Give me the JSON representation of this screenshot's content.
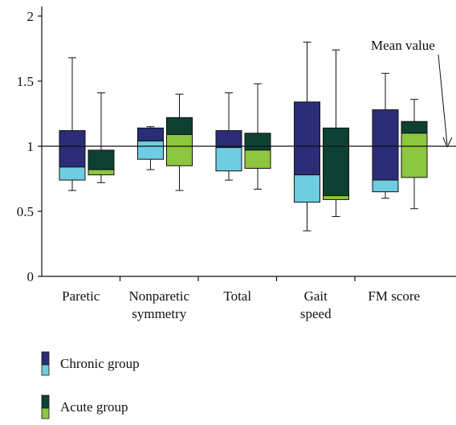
{
  "chart_data": {
    "type": "box",
    "y_ticks": [
      "0",
      "0.5",
      "1",
      "1.5",
      "2"
    ],
    "ylim": [
      0,
      2
    ],
    "reference_line": {
      "value": 1,
      "label": "Mean value"
    },
    "categories": [
      {
        "label_lines": [
          "Paretic"
        ]
      },
      {
        "label_lines": [
          "Nonparetic",
          "symmetry"
        ]
      },
      {
        "label_lines": [
          "Total"
        ]
      },
      {
        "label_lines": [
          "Gait",
          "speed"
        ]
      },
      {
        "label_lines": [
          "FM score"
        ]
      }
    ],
    "series": [
      {
        "name": "Chronic group",
        "colors": {
          "upper": "#2b2d78",
          "lower": "#6ecde0"
        },
        "boxes": [
          {
            "min": 0.66,
            "q1": 0.74,
            "median": 0.84,
            "q3": 1.12,
            "max": 1.68
          },
          {
            "min": 0.82,
            "q1": 0.9,
            "median": 1.04,
            "q3": 1.14,
            "max": 1.15
          },
          {
            "min": 0.74,
            "q1": 0.81,
            "median": 0.99,
            "q3": 1.12,
            "max": 1.41
          },
          {
            "min": 0.35,
            "q1": 0.57,
            "median": 0.78,
            "q3": 1.34,
            "max": 1.8
          },
          {
            "min": 0.6,
            "q1": 0.65,
            "median": 0.74,
            "q3": 1.28,
            "max": 1.56
          }
        ]
      },
      {
        "name": "Acute group",
        "colors": {
          "upper": "#0d4233",
          "lower": "#8dc63f"
        },
        "boxes": [
          {
            "min": 0.72,
            "q1": 0.78,
            "median": 0.82,
            "q3": 0.97,
            "max": 1.41
          },
          {
            "min": 0.66,
            "q1": 0.85,
            "median": 1.09,
            "q3": 1.22,
            "max": 1.4
          },
          {
            "min": 0.67,
            "q1": 0.83,
            "median": 0.97,
            "q3": 1.1,
            "max": 1.48
          },
          {
            "min": 0.46,
            "q1": 0.59,
            "median": 0.62,
            "q3": 1.14,
            "max": 1.74
          },
          {
            "min": 0.52,
            "q1": 0.76,
            "median": 1.1,
            "q3": 1.19,
            "max": 1.36
          }
        ]
      }
    ],
    "legend": {
      "position": "bottom-left"
    }
  }
}
